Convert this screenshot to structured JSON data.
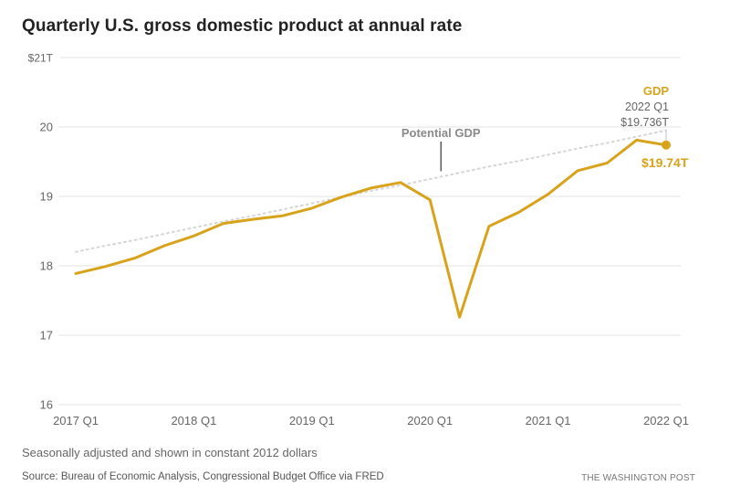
{
  "header": {
    "title": "Quarterly U.S. gross domestic product at annual rate"
  },
  "footer": {
    "note": "Seasonally adjusted and shown in constant 2012 dollars",
    "source": "Source: Bureau of Economic Analysis, Congressional Budget Office via FRED",
    "credit": "THE WASHINGTON POST"
  },
  "colors": {
    "gdp": "#d9a21b",
    "potential": "#d6d6d6",
    "grid": "#e3e3e3",
    "axis_text": "#666666",
    "annotation_text": "#777777"
  },
  "chart_data": {
    "type": "line",
    "title": "Quarterly U.S. gross domestic product at annual rate",
    "xlabel": "",
    "ylabel": "",
    "ylim": [
      16,
      21
    ],
    "yticks": [
      16,
      17,
      18,
      19,
      20,
      21
    ],
    "ytick_labels": [
      "16",
      "17",
      "18",
      "19",
      "20",
      "$21T"
    ],
    "grid": true,
    "x": [
      "2017 Q1",
      "2017 Q2",
      "2017 Q3",
      "2017 Q4",
      "2018 Q1",
      "2018 Q2",
      "2018 Q3",
      "2018 Q4",
      "2019 Q1",
      "2019 Q2",
      "2019 Q3",
      "2019 Q4",
      "2020 Q1",
      "2020 Q2",
      "2020 Q3",
      "2020 Q4",
      "2021 Q1",
      "2021 Q2",
      "2021 Q3",
      "2021 Q4",
      "2022 Q1"
    ],
    "xtick_labels": [
      "2017 Q1",
      "2018 Q1",
      "2019 Q1",
      "2020 Q1",
      "2021 Q1",
      "2022 Q1"
    ],
    "xtick_indices": [
      0,
      4,
      8,
      12,
      16,
      20
    ],
    "series": [
      {
        "name": "GDP",
        "style": "solid",
        "values": [
          17.89,
          17.99,
          18.11,
          18.29,
          18.43,
          18.61,
          18.67,
          18.72,
          18.83,
          18.99,
          19.12,
          19.2,
          18.95,
          17.26,
          18.57,
          18.77,
          19.03,
          19.37,
          19.48,
          19.81,
          19.74
        ]
      },
      {
        "name": "Potential GDP",
        "style": "dotted",
        "values": [
          18.2,
          18.29,
          18.37,
          18.46,
          18.55,
          18.64,
          18.72,
          18.81,
          18.9,
          18.99,
          19.08,
          19.16,
          19.25,
          19.34,
          19.43,
          19.51,
          19.6,
          19.69,
          19.77,
          19.86,
          19.95
        ]
      }
    ],
    "annotations": {
      "potential_label": "Potential GDP",
      "potential_label_index": 12,
      "gdp_label": "GDP",
      "gdp_period": "2022 Q1",
      "gdp_exact": "$19.736T",
      "gdp_end_label": "$19.74T"
    }
  }
}
